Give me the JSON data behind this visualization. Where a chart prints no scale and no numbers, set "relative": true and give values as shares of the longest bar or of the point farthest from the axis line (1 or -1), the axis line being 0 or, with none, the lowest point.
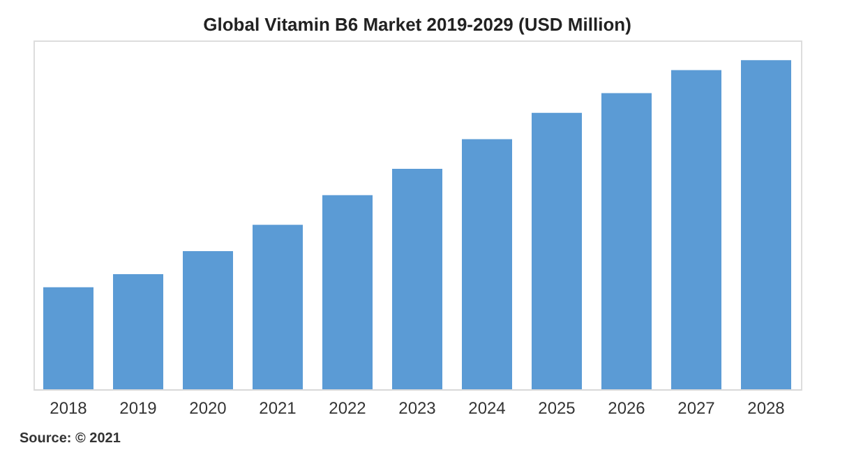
{
  "chart_data": {
    "type": "bar",
    "title": "Global Vitamin B6 Market 2019-2029 (USD Million)",
    "categories": [
      "2018",
      "2019",
      "2020",
      "2021",
      "2022",
      "2023",
      "2024",
      "2025",
      "2026",
      "2027",
      "2028"
    ],
    "values": [
      0.31,
      0.35,
      0.42,
      0.5,
      0.59,
      0.67,
      0.76,
      0.84,
      0.9,
      0.97,
      1
    ],
    "color": "#5b9bd5",
    "relative": true,
    "grid": false,
    "annotations": [
      "Source: © 2021"
    ]
  }
}
